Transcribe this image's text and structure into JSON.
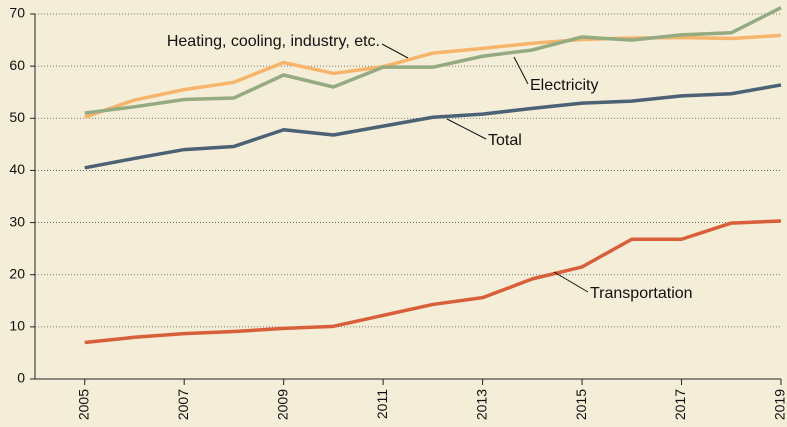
{
  "chart_data": {
    "type": "line",
    "x": [
      2005,
      2006,
      2007,
      2008,
      2009,
      2010,
      2011,
      2012,
      2013,
      2014,
      2015,
      2016,
      2017,
      2018,
      2019
    ],
    "xlim": [
      2004,
      2019
    ],
    "xticks": [
      2005,
      2007,
      2009,
      2011,
      2013,
      2015,
      2017,
      2019
    ],
    "ylim": [
      0,
      70
    ],
    "yticks": [
      0,
      10,
      20,
      30,
      40,
      50,
      60,
      70
    ],
    "grid": true,
    "series": [
      {
        "name": "Heating, cooling, industry, etc.",
        "color": "#f7b56c",
        "values": [
          50.2,
          53.5,
          55.5,
          56.9,
          60.7,
          58.6,
          59.9,
          62.5,
          63.4,
          64.4,
          65.1,
          65.4,
          65.5,
          65.3,
          65.9
        ]
      },
      {
        "name": "Electricity",
        "color": "#94aa80",
        "values": [
          51.0,
          52.2,
          53.6,
          53.9,
          58.3,
          56.0,
          59.8,
          59.8,
          61.9,
          63.1,
          65.6,
          65.0,
          66.0,
          66.4,
          71.2
        ]
      },
      {
        "name": "Total",
        "color": "#4b6275",
        "values": [
          40.5,
          42.3,
          44.0,
          44.6,
          47.8,
          46.8,
          48.5,
          50.2,
          50.8,
          51.9,
          52.9,
          53.3,
          54.3,
          54.7,
          56.4
        ]
      },
      {
        "name": "Transportation",
        "color": "#d95f3a",
        "values": [
          7.0,
          8.0,
          8.7,
          9.1,
          9.7,
          10.1,
          12.2,
          14.3,
          15.6,
          19.2,
          21.5,
          26.8,
          26.8,
          29.9,
          30.3
        ]
      }
    ]
  }
}
